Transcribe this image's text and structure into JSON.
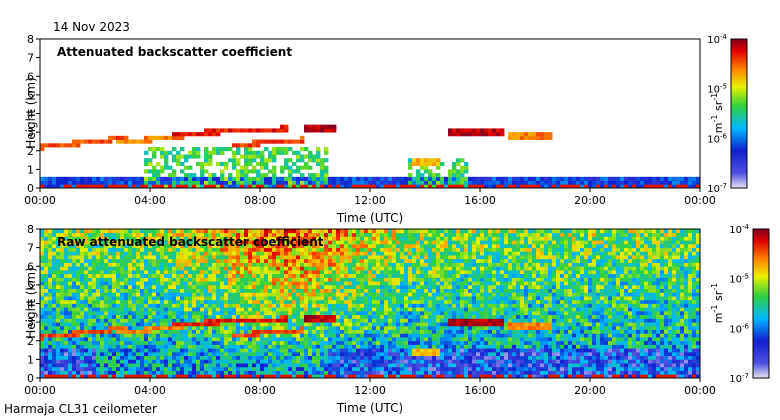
{
  "header": {
    "date": "14 Nov 2023"
  },
  "footer": {
    "station": "Harmaja CL31 ceilometer"
  },
  "colors": {
    "colormap": [
      "#e0d8f0",
      "#2020d0",
      "#00c0ff",
      "#40d040",
      "#f0f000",
      "#ff8000",
      "#e00000",
      "#800000"
    ]
  },
  "chart_data": [
    {
      "type": "heatmap",
      "title": "Attenuated backscatter coefficient",
      "xlabel": "Time (UTC)",
      "ylabel": "Height (km)",
      "x_ticks": [
        "00:00",
        "04:00",
        "08:00",
        "12:00",
        "16:00",
        "20:00",
        "00:00"
      ],
      "x_range_hours": [
        0,
        24
      ],
      "y_ticks": [
        0,
        1,
        2,
        3,
        4,
        5,
        6,
        7,
        8
      ],
      "ylim": [
        0,
        8
      ],
      "colorbar": {
        "unit": "m-1 sr-1",
        "ticks": [
          "10-7",
          "10-6",
          "10-5",
          "10-4"
        ],
        "range": [
          1e-07,
          0.0001
        ],
        "scale": "log"
      },
      "features": {
        "cloud_layers": [
          {
            "t_start": 0.0,
            "t_end": 3.2,
            "h_start": 2.2,
            "h_end": 2.7,
            "level": 0.9
          },
          {
            "t_start": 2.7,
            "t_end": 5.2,
            "h_start": 2.4,
            "h_end": 2.8,
            "level": 0.85
          },
          {
            "t_start": 4.8,
            "t_end": 9.0,
            "h_start": 2.9,
            "h_end": 3.2,
            "level": 0.95
          },
          {
            "t_start": 7.0,
            "t_end": 9.6,
            "h_start": 2.3,
            "h_end": 2.6,
            "level": 0.9
          },
          {
            "t_start": 9.6,
            "t_end": 10.8,
            "h_start": 3.2,
            "h_end": 3.2,
            "level": 1.0
          },
          {
            "t_start": 13.6,
            "t_end": 14.5,
            "h_start": 1.4,
            "h_end": 1.4,
            "level": 0.8
          },
          {
            "t_start": 14.8,
            "t_end": 16.8,
            "h_start": 3.0,
            "h_end": 3.0,
            "level": 1.0
          },
          {
            "t_start": 17.0,
            "t_end": 18.6,
            "h_start": 2.8,
            "h_end": 2.8,
            "level": 0.85
          }
        ],
        "boundary_layer_top_km": 0.7
      }
    },
    {
      "type": "heatmap",
      "title": "Raw attenuated backscatter coefficient",
      "xlabel": "Time (UTC)",
      "ylabel": "Height (km)",
      "x_ticks": [
        "00:00",
        "04:00",
        "08:00",
        "12:00",
        "16:00",
        "20:00",
        "00:00"
      ],
      "x_range_hours": [
        0,
        24
      ],
      "y_ticks": [
        0,
        1,
        2,
        3,
        4,
        5,
        6,
        7,
        8
      ],
      "ylim": [
        0,
        8
      ],
      "colorbar": {
        "unit": "m-1 sr-1",
        "ticks": [
          "10-7",
          "10-6",
          "10-5",
          "10-4"
        ],
        "range": [
          1e-07,
          0.0001
        ],
        "scale": "log"
      }
    }
  ]
}
